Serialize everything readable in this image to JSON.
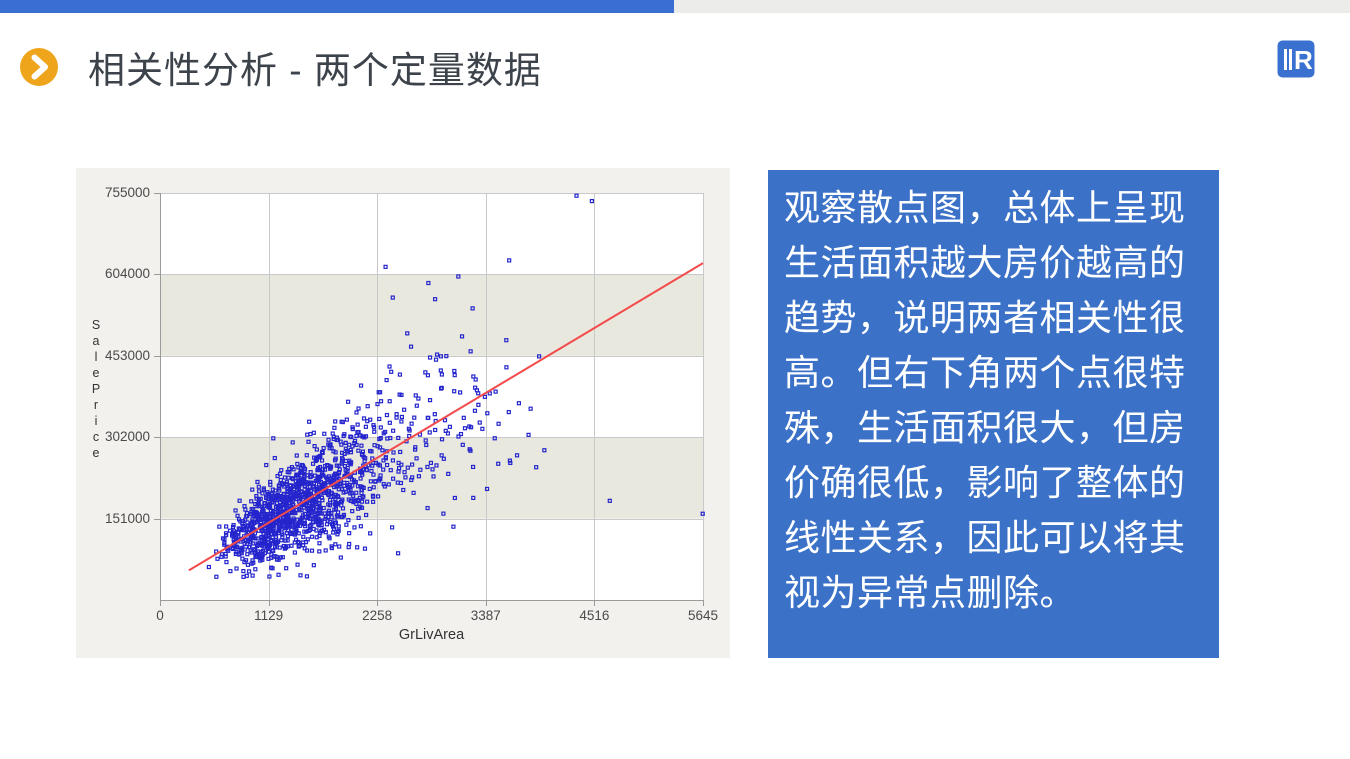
{
  "header": {
    "title": "相关性分析 - 两个定量数据"
  },
  "logo": {
    "letter": "R"
  },
  "note": {
    "text": "观察散点图，总体上呈现生活面积越大房价越高的趋势，说明两者相关性很高。但右下角两个点很特殊，生活面积很大，但房价确很低，影响了整体的线性关系，因此可以将其视为异常点删除。"
  },
  "colors": {
    "top_bar_blue": "#3a6ed0",
    "top_bar_gray": "#ececeb",
    "title_text": "#3d434b",
    "bullet_icon": "#efa51b",
    "logo_blue": "#3a70cf",
    "note_box_bg": "#3b72c8",
    "note_text": "#ffffff"
  },
  "chart_data": {
    "type": "scatter",
    "xlabel": "GrLivArea",
    "ylabel": "SalePrice",
    "x_ticks": [
      0,
      1129,
      2258,
      3387,
      4516,
      5645
    ],
    "y_ticks": [
      151000,
      302000,
      453000,
      604000,
      755000
    ],
    "xlim": [
      0,
      5645
    ],
    "ylim": [
      0,
      755000
    ],
    "grid": true,
    "bands": [
      [
        151000,
        302000
      ],
      [
        453000,
        604000
      ]
    ],
    "trend_line": {
      "x1": 300,
      "y1": 55000,
      "x2": 5645,
      "y2": 625000
    },
    "notable_points": [
      [
        4330,
        750000
      ],
      [
        4490,
        740000
      ],
      [
        3630,
        630000
      ],
      [
        2345,
        618000
      ],
      [
        2420,
        561000
      ],
      [
        2790,
        588000
      ],
      [
        2860,
        558000
      ],
      [
        3250,
        541000
      ],
      [
        3140,
        489000
      ],
      [
        2610,
        470000
      ],
      [
        2920,
        452000
      ],
      [
        3600,
        482000
      ],
      [
        3480,
        300000
      ],
      [
        3400,
        206000
      ],
      [
        3120,
        385000
      ],
      [
        3310,
        362000
      ]
    ],
    "outliers_bottom_right": [
      [
        4676,
        184000
      ],
      [
        5642,
        160000
      ]
    ],
    "generator": {
      "seed": 11,
      "n_main": 1320,
      "x_log_mean": 7.28,
      "x_log_sd": 0.32,
      "x_min": 334,
      "x_max": 4050,
      "slope": 106.6,
      "intercept": 23000,
      "noise_base": 14000,
      "noise_per_x": 22,
      "y_min": 42000,
      "y_max": 640000,
      "n_tail": 36,
      "point_size": 3
    },
    "colors": {
      "margin_bg": "#f2f1ee",
      "plot_bg": "#ffffff",
      "band": "#e9e8de",
      "grid": "#c9c9c9",
      "axis": "#9a9a9a",
      "tick_text": "#4a4a4a",
      "point": "#2525cd",
      "trend": "#f34b4b"
    }
  }
}
